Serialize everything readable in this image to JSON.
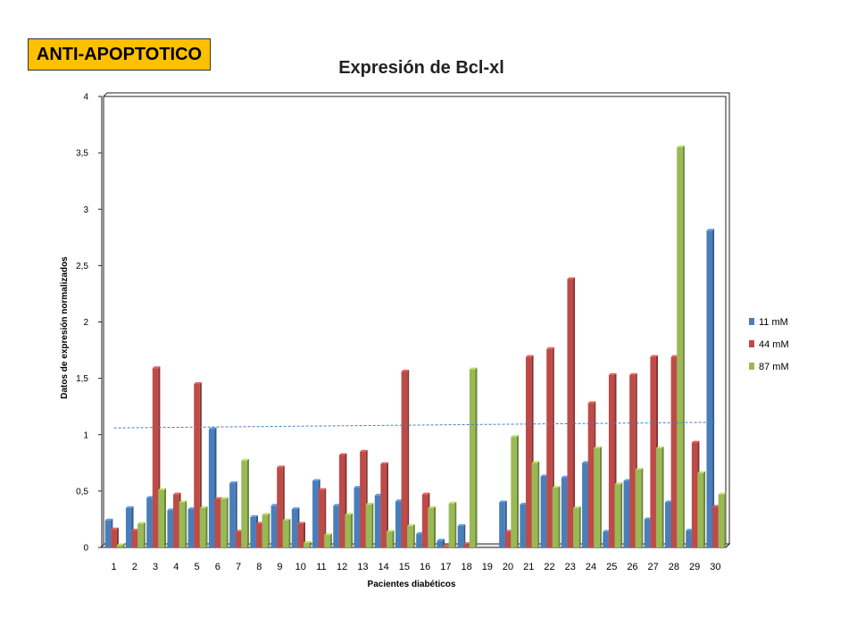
{
  "badge": {
    "label": "ANTI-APOPTOTICO",
    "color": "#ffc000"
  },
  "chart_data": {
    "type": "bar",
    "title": "Expresión  de Bcl-xl",
    "xlabel": "Pacientes diabéticos",
    "ylabel": "Datos de expresión  normalizados",
    "ylim": [
      0,
      4
    ],
    "yticks": [
      "0",
      "0,5",
      "1",
      "1,5",
      "2",
      "2,5",
      "3",
      "3,5",
      "4"
    ],
    "ytick_values": [
      0,
      0.5,
      1,
      1.5,
      2,
      2.5,
      3,
      3.5,
      4
    ],
    "categories": [
      "1",
      "2",
      "3",
      "4",
      "5",
      "6",
      "7",
      "8",
      "9",
      "10",
      "11",
      "12",
      "13",
      "14",
      "15",
      "16",
      "17",
      "18",
      "19",
      "20",
      "21",
      "22",
      "23",
      "24",
      "25",
      "26",
      "27",
      "28",
      "29",
      "30"
    ],
    "series": [
      {
        "name": "11 mM",
        "color": "#4a7ebb",
        "values": [
          0.24,
          0.35,
          0.44,
          0.33,
          0.34,
          1.05,
          0.57,
          0.27,
          0.37,
          0.34,
          0.59,
          0.37,
          0.53,
          0.46,
          0.41,
          0.12,
          0.06,
          0.19,
          0,
          0.4,
          0.38,
          0.63,
          0.62,
          0.75,
          0.14,
          0.59,
          0.25,
          0.4,
          0.15,
          2.81
        ]
      },
      {
        "name": "44 mM",
        "color": "#be4b48",
        "values": [
          0.16,
          0.15,
          1.59,
          0.47,
          1.45,
          0.43,
          0.14,
          0.21,
          0.71,
          0.21,
          0.51,
          0.82,
          0.85,
          0.74,
          1.56,
          0.47,
          0.01,
          0.03,
          0,
          0.14,
          1.69,
          1.76,
          2.38,
          1.28,
          1.53,
          1.53,
          1.69,
          1.69,
          0.93,
          0.36
        ]
      },
      {
        "name": "87 mM",
        "color": "#98b954",
        "values": [
          0.02,
          0.21,
          0.51,
          0.4,
          0.35,
          0.43,
          0.77,
          0.29,
          0.24,
          0.04,
          0.11,
          0.29,
          0.38,
          0.14,
          0.19,
          0.35,
          0.39,
          1.58,
          0,
          0.98,
          0.75,
          0.53,
          0.35,
          0.88,
          0.56,
          0.69,
          0.88,
          3.55,
          0.66,
          0.47
        ]
      }
    ],
    "trendline": {
      "series": "11 mM",
      "style": "dashed",
      "y_start": 1.06,
      "y_end": 1.11
    },
    "legend_position": "right",
    "grid": false
  }
}
